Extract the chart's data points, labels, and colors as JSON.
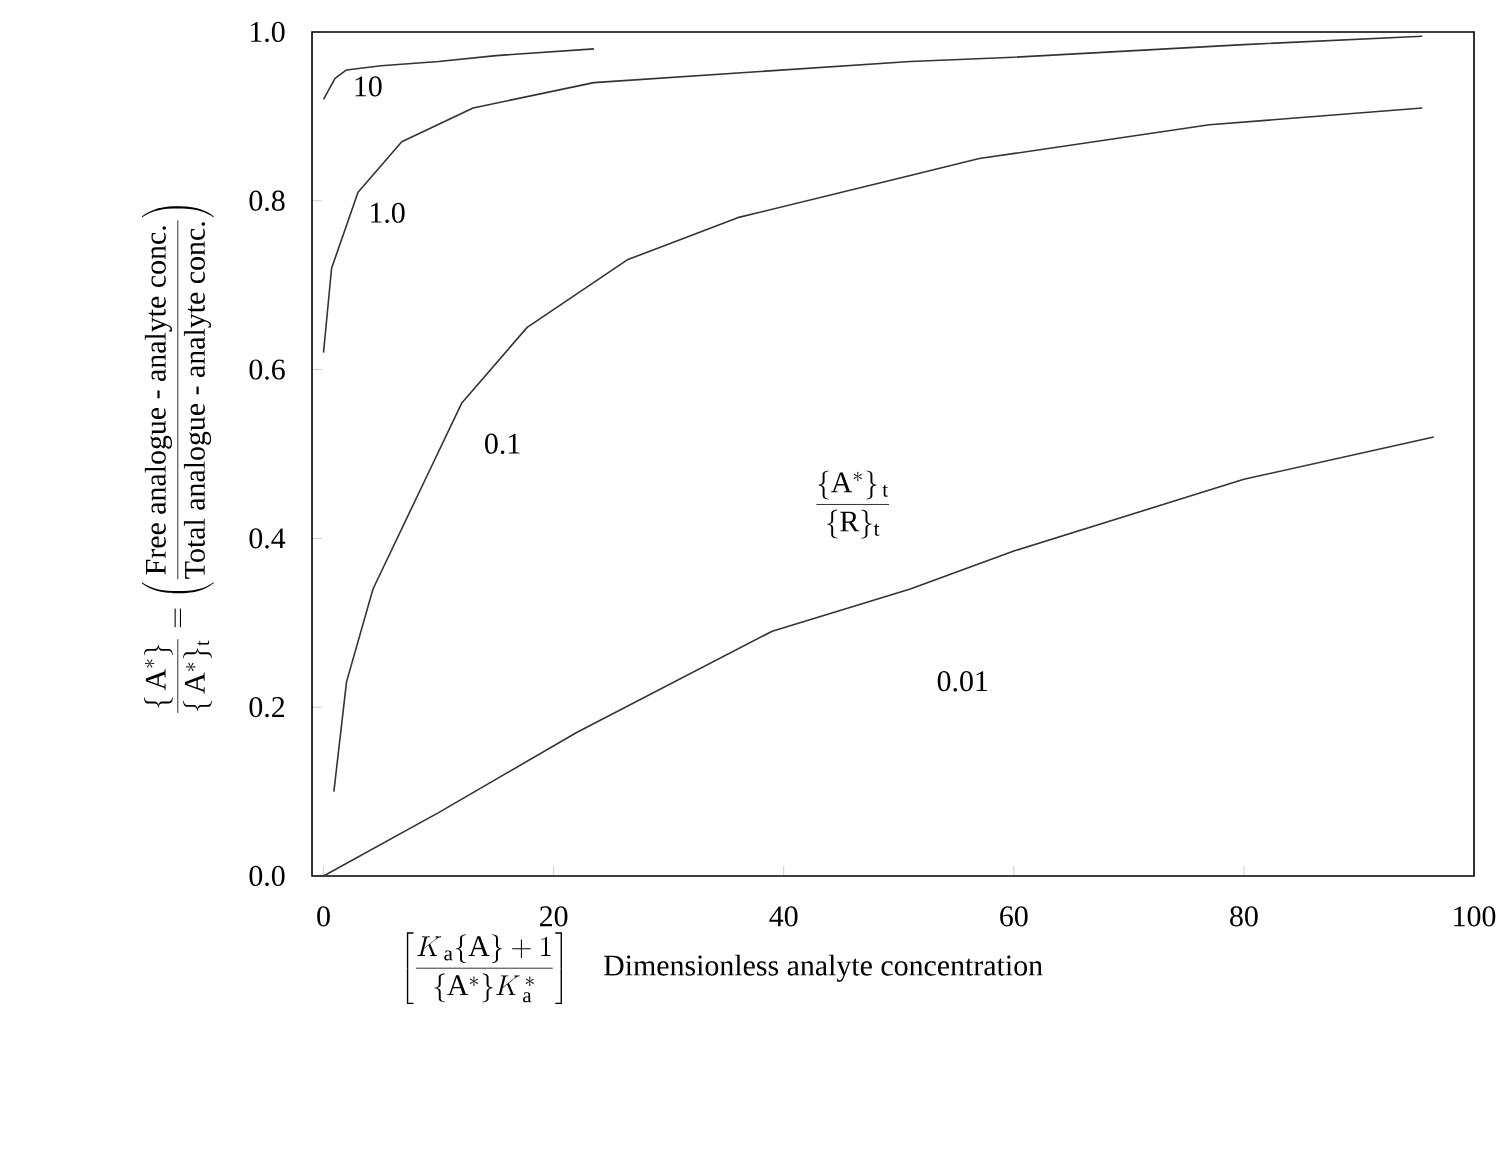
{
  "chart_data": {
    "type": "line",
    "xlabel": "\\left[\\frac{K_{\\,\\mathrm{a}}\\{\\mathrm{A}\\}+1}{\\{\\mathrm{A}^{*}\\}K_{\\,\\mathrm{a}}^{\\,*}}\\right]\\quad\\mbox{Dimensionless analyte concentration}",
    "ylabel": "\\frac{\\{\\,\\mathrm{A}^{*}\\}}{\\{\\,\\mathrm{A}^{*}\\}_{\\mathrm{t}}}=\\left(\\frac{\\mbox{Free analogue - analyte conc.}}{\\mbox{Total analogue - analyte conc.}}\\right)",
    "legend_title": "\\frac{\\{\\mathrm{A}^{*}\\}_{\\,\\mathrm{t}}}{\\{\\mathrm{R}\\}_{\\mathrm{t}}}",
    "xlim": [
      -1,
      100
    ],
    "ylim": [
      0,
      1
    ],
    "xticks": [
      0,
      20,
      40,
      60,
      80,
      100
    ],
    "yticks": [
      {
        "value": 0,
        "label": "0.0"
      },
      {
        "value": 0.2,
        "label": "0.2"
      },
      {
        "value": 0.4,
        "label": "0.4"
      },
      {
        "value": 0.6,
        "label": "0.6"
      },
      {
        "value": 0.8,
        "label": "0.8"
      },
      {
        "value": 1,
        "label": "1.0"
      }
    ],
    "grid": false,
    "marker": "none",
    "line_style": "solid",
    "series": [
      {
        "name": "10",
        "color": "#333333",
        "x": [
          0,
          1,
          2,
          5,
          10,
          15,
          23.5
        ],
        "values": [
          0.92,
          0.945,
          0.955,
          0.96,
          0.965,
          0.972,
          0.98
        ]
      },
      {
        "name": "1.0",
        "color": "#333333",
        "x": [
          0,
          0.7,
          3,
          6.8,
          13,
          23.5,
          51,
          60,
          80,
          95.5
        ],
        "values": [
          0.62,
          0.72,
          0.81,
          0.87,
          0.91,
          0.94,
          0.965,
          0.97,
          0.985,
          0.995
        ]
      },
      {
        "name": "0.1",
        "color": "#333333",
        "x": [
          0.9,
          2,
          4.3,
          8.5,
          12,
          17.7,
          26.4,
          36,
          51,
          57,
          77,
          95.5
        ],
        "values": [
          0.1,
          0.23,
          0.34,
          0.46,
          0.56,
          0.65,
          0.73,
          0.78,
          0.83,
          0.85,
          0.89,
          0.91
        ]
      },
      {
        "name": "0.01",
        "color": "#333333",
        "x": [
          0,
          10,
          22,
          39,
          51,
          60,
          80,
          96.5
        ],
        "values": [
          0,
          0.075,
          0.17,
          0.29,
          0.34,
          0.385,
          0.47,
          0.52
        ]
      }
    ]
  }
}
